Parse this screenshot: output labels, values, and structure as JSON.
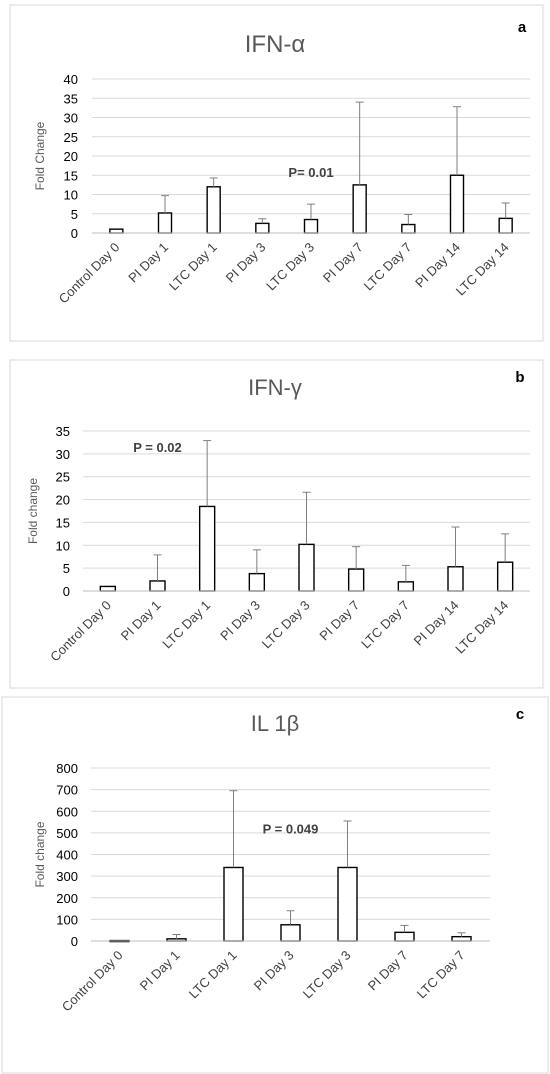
{
  "chart_data": [
    {
      "type": "bar",
      "panel_label": "a",
      "title": "IFN-α",
      "ylabel": "Fold Change",
      "xlabel": "",
      "ylim": [
        0,
        40
      ],
      "yticks": [
        0,
        5,
        10,
        15,
        20,
        25,
        30,
        35,
        40
      ],
      "grid": true,
      "categories": [
        "Control Day 0",
        "PI Day 1",
        "LTC Day 1",
        "PI Day 3",
        "LTC Day 3",
        "PI Day 7",
        "LTC Day 7",
        "PI Day 14",
        "LTC Day 14"
      ],
      "values": [
        1,
        5.2,
        12,
        2.5,
        3.5,
        12.5,
        2.2,
        15,
        3.8
      ],
      "error_upper": [
        0,
        4.5,
        2.3,
        1.2,
        4,
        21.5,
        2.6,
        17.8,
        4
      ],
      "annotations": [
        {
          "text": "P= 0.01",
          "category": "LTC Day 3"
        }
      ]
    },
    {
      "type": "bar",
      "panel_label": "b",
      "title": "IFN-γ",
      "ylabel": "Fold change",
      "xlabel": "",
      "ylim": [
        0,
        35
      ],
      "yticks": [
        0,
        5,
        10,
        15,
        20,
        25,
        30,
        35
      ],
      "grid": true,
      "categories": [
        "Control Day 0",
        "PI Day 1",
        "LTC Day 1",
        "PI Day 3",
        "LTC Day 3",
        "PI Day 7",
        "LTC Day 7",
        "PI Day 14",
        "LTC Day 14"
      ],
      "values": [
        1,
        2.2,
        18.5,
        3.8,
        10.2,
        4.8,
        2,
        5.3,
        6.3
      ],
      "error_upper": [
        0,
        5.7,
        14.4,
        5.2,
        11.4,
        4.9,
        3.6,
        8.7,
        6.2
      ],
      "annotations": [
        {
          "text": "P = 0.02",
          "category": "PI Day 1"
        }
      ]
    },
    {
      "type": "bar",
      "panel_label": "c",
      "title": "IL 1β",
      "ylabel": "Fold change",
      "xlabel": "",
      "ylim": [
        0,
        800
      ],
      "yticks": [
        0,
        100,
        200,
        300,
        400,
        500,
        600,
        700,
        800
      ],
      "grid": true,
      "categories": [
        "Control Day 0",
        "PI Day 1",
        "LTC Day 1",
        "PI Day 3",
        "LTC Day 3",
        "PI Day 7",
        "LTC Day 7"
      ],
      "values": [
        2,
        10,
        340,
        75,
        340,
        40,
        20
      ],
      "error_upper": [
        0,
        20,
        355,
        65,
        215,
        32,
        18
      ],
      "annotations": [
        {
          "text": "P = 0.049",
          "category": "PI Day 3"
        }
      ]
    }
  ]
}
